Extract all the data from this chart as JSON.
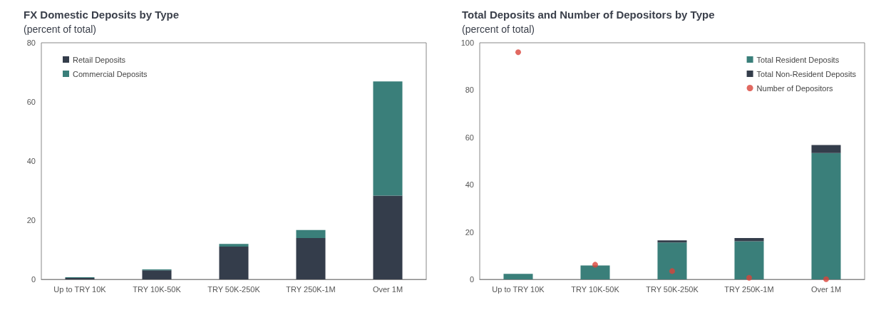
{
  "chart_data": [
    {
      "type": "bar",
      "title": "FX Domestic Deposits by Type",
      "subtitle": "(percent of total)",
      "categories": [
        "Up to TRY 10K",
        "TRY 10K-50K",
        "TRY 50K-250K",
        "TRY 250K-1M",
        "Over 1M"
      ],
      "stacked": true,
      "ylim": [
        0,
        80
      ],
      "yticks": [
        0,
        20,
        40,
        60,
        80
      ],
      "grid": false,
      "legend": "top left",
      "series": [
        {
          "name": "Retail Deposits",
          "color": "#343d4b",
          "values": [
            0.5,
            3.1,
            11.1,
            14.0,
            28.3
          ]
        },
        {
          "name": "Commercial Deposits",
          "color": "#3a7f7a",
          "values": [
            0.2,
            0.3,
            0.9,
            2.7,
            38.6
          ]
        }
      ]
    },
    {
      "type": "bar",
      "title": "Total Deposits and Number of Depositors by Type",
      "subtitle": "(percent of total)",
      "categories": [
        "Up to TRY 10K",
        "TRY 10K-50K",
        "TRY 50K-250K",
        "TRY 250K-1M",
        "Over 1M"
      ],
      "stacked": true,
      "ylim": [
        0,
        100
      ],
      "yticks": [
        0,
        20,
        40,
        60,
        80,
        100
      ],
      "grid": false,
      "legend": "top right",
      "marker": "circle",
      "series": [
        {
          "name": "Total Resident Deposits",
          "color": "#3a7f7a",
          "values": [
            2.3,
            5.9,
            15.6,
            16.1,
            53.4
          ]
        },
        {
          "name": "Total Non-Resident Deposits",
          "color": "#343d4b",
          "values": [
            null,
            null,
            0.9,
            1.4,
            3.4
          ]
        },
        {
          "name": "Number of Depositors",
          "type": "scatter",
          "color": "#d9443a",
          "values": [
            96.0,
            6.2,
            3.5,
            0.7,
            0.1
          ]
        }
      ]
    }
  ]
}
